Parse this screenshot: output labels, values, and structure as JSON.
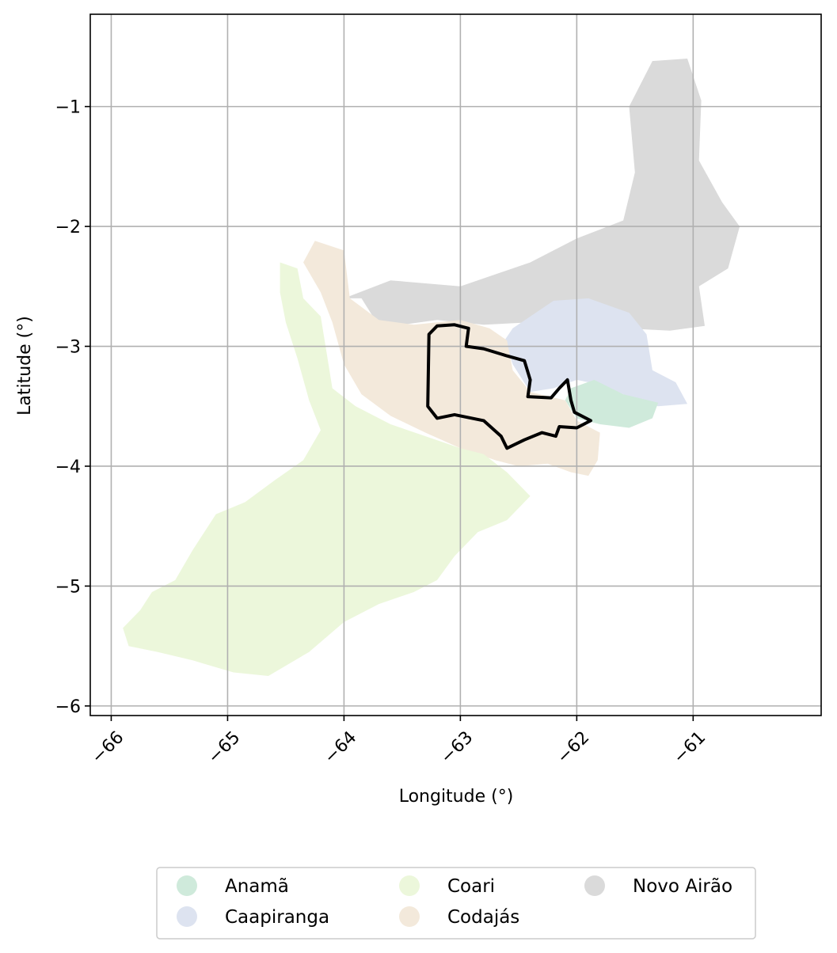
{
  "chart_data": {
    "type": "map",
    "xlabel": "Longitude (°)",
    "ylabel": "Latitude (°)",
    "xlim": [
      -66.18,
      -59.9
    ],
    "ylim": [
      -6.08,
      -0.23
    ],
    "grid": true,
    "xticks": [
      {
        "value": -66,
        "label": "−66"
      },
      {
        "value": -65,
        "label": "−65"
      },
      {
        "value": -64,
        "label": "−64"
      },
      {
        "value": -63,
        "label": "−63"
      },
      {
        "value": -62,
        "label": "−62"
      },
      {
        "value": -61,
        "label": "−61"
      }
    ],
    "yticks": [
      {
        "value": -1,
        "label": "−1"
      },
      {
        "value": -2,
        "label": "−2"
      },
      {
        "value": -3,
        "label": "−3"
      },
      {
        "value": -4,
        "label": "−4"
      },
      {
        "value": -5,
        "label": "−5"
      },
      {
        "value": -6,
        "label": "−6"
      }
    ],
    "legend_position": "bottom-center",
    "regions": [
      {
        "name": "Novo Airão",
        "color": "#dadada",
        "coords": [
          [
            -64.0,
            -2.6
          ],
          [
            -63.6,
            -2.45
          ],
          [
            -63.0,
            -2.5
          ],
          [
            -62.4,
            -2.3
          ],
          [
            -62.0,
            -2.1
          ],
          [
            -61.6,
            -1.95
          ],
          [
            -61.5,
            -1.55
          ],
          [
            -61.55,
            -1.0
          ],
          [
            -61.35,
            -0.62
          ],
          [
            -61.05,
            -0.6
          ],
          [
            -60.93,
            -0.95
          ],
          [
            -60.95,
            -1.45
          ],
          [
            -60.75,
            -1.8
          ],
          [
            -60.6,
            -2.0
          ],
          [
            -60.7,
            -2.35
          ],
          [
            -60.95,
            -2.5
          ],
          [
            -60.9,
            -2.83
          ],
          [
            -61.2,
            -2.87
          ],
          [
            -61.6,
            -2.85
          ],
          [
            -62.0,
            -2.63
          ],
          [
            -62.4,
            -2.8
          ],
          [
            -62.8,
            -2.82
          ],
          [
            -63.2,
            -2.78
          ],
          [
            -63.5,
            -2.82
          ],
          [
            -63.72,
            -2.8
          ],
          [
            -63.85,
            -2.6
          ]
        ]
      },
      {
        "name": "Caapiranga",
        "color": "#dde3f0",
        "coords": [
          [
            -62.55,
            -2.85
          ],
          [
            -62.2,
            -2.62
          ],
          [
            -61.9,
            -2.6
          ],
          [
            -61.55,
            -2.72
          ],
          [
            -61.4,
            -2.9
          ],
          [
            -61.35,
            -3.2
          ],
          [
            -61.15,
            -3.3
          ],
          [
            -61.05,
            -3.48
          ],
          [
            -61.3,
            -3.5
          ],
          [
            -61.55,
            -3.42
          ],
          [
            -61.8,
            -3.32
          ],
          [
            -62.0,
            -3.28
          ],
          [
            -62.2,
            -3.35
          ],
          [
            -62.4,
            -3.38
          ],
          [
            -62.55,
            -3.15
          ],
          [
            -62.62,
            -2.95
          ]
        ]
      },
      {
        "name": "Anamã",
        "color": "#cfeadb",
        "coords": [
          [
            -62.05,
            -3.35
          ],
          [
            -61.85,
            -3.28
          ],
          [
            -61.6,
            -3.4
          ],
          [
            -61.3,
            -3.47
          ],
          [
            -61.35,
            -3.6
          ],
          [
            -61.55,
            -3.68
          ],
          [
            -61.8,
            -3.65
          ],
          [
            -62.0,
            -3.6
          ],
          [
            -62.1,
            -3.45
          ]
        ]
      },
      {
        "name": "Codajás",
        "color": "#f3e9db",
        "coords": [
          [
            -64.35,
            -2.3
          ],
          [
            -64.25,
            -2.12
          ],
          [
            -64.0,
            -2.2
          ],
          [
            -63.95,
            -2.6
          ],
          [
            -63.7,
            -2.78
          ],
          [
            -63.4,
            -2.82
          ],
          [
            -63.0,
            -2.78
          ],
          [
            -62.75,
            -2.85
          ],
          [
            -62.6,
            -2.95
          ],
          [
            -62.55,
            -3.2
          ],
          [
            -62.4,
            -3.38
          ],
          [
            -62.1,
            -3.45
          ],
          [
            -62.0,
            -3.62
          ],
          [
            -61.8,
            -3.72
          ],
          [
            -61.82,
            -3.95
          ],
          [
            -61.9,
            -4.08
          ],
          [
            -62.05,
            -4.05
          ],
          [
            -62.25,
            -3.98
          ],
          [
            -62.5,
            -4.0
          ],
          [
            -62.7,
            -3.95
          ],
          [
            -63.0,
            -3.85
          ],
          [
            -63.3,
            -3.72
          ],
          [
            -63.6,
            -3.58
          ],
          [
            -63.85,
            -3.4
          ],
          [
            -64.0,
            -3.15
          ],
          [
            -64.1,
            -2.8
          ],
          [
            -64.2,
            -2.55
          ]
        ]
      },
      {
        "name": "Coari",
        "color": "#ecf7db",
        "coords": [
          [
            -64.55,
            -2.3
          ],
          [
            -64.4,
            -2.35
          ],
          [
            -64.35,
            -2.6
          ],
          [
            -64.2,
            -2.75
          ],
          [
            -64.15,
            -3.05
          ],
          [
            -64.1,
            -3.35
          ],
          [
            -63.9,
            -3.5
          ],
          [
            -63.6,
            -3.65
          ],
          [
            -63.3,
            -3.75
          ],
          [
            -63.0,
            -3.85
          ],
          [
            -62.8,
            -3.9
          ],
          [
            -62.6,
            -4.05
          ],
          [
            -62.4,
            -4.25
          ],
          [
            -62.6,
            -4.45
          ],
          [
            -62.85,
            -4.55
          ],
          [
            -63.05,
            -4.75
          ],
          [
            -63.2,
            -4.95
          ],
          [
            -63.4,
            -5.05
          ],
          [
            -63.7,
            -5.15
          ],
          [
            -64.0,
            -5.3
          ],
          [
            -64.3,
            -5.55
          ],
          [
            -64.65,
            -5.75
          ],
          [
            -64.95,
            -5.72
          ],
          [
            -65.3,
            -5.62
          ],
          [
            -65.6,
            -5.55
          ],
          [
            -65.85,
            -5.5
          ],
          [
            -65.9,
            -5.35
          ],
          [
            -65.75,
            -5.2
          ],
          [
            -65.65,
            -5.05
          ],
          [
            -65.45,
            -4.95
          ],
          [
            -65.3,
            -4.7
          ],
          [
            -65.1,
            -4.4
          ],
          [
            -64.85,
            -4.3
          ],
          [
            -64.6,
            -4.12
          ],
          [
            -64.35,
            -3.95
          ],
          [
            -64.2,
            -3.7
          ],
          [
            -64.3,
            -3.45
          ],
          [
            -64.4,
            -3.1
          ],
          [
            -64.5,
            -2.8
          ],
          [
            -64.55,
            -2.55
          ]
        ]
      }
    ],
    "outline": [
      [
        -63.27,
        -2.9
      ],
      [
        -63.2,
        -2.83
      ],
      [
        -63.05,
        -2.82
      ],
      [
        -62.93,
        -2.85
      ],
      [
        -62.95,
        -3.0
      ],
      [
        -62.8,
        -3.02
      ],
      [
        -62.6,
        -3.08
      ],
      [
        -62.45,
        -3.12
      ],
      [
        -62.4,
        -3.28
      ],
      [
        -62.42,
        -3.42
      ],
      [
        -62.22,
        -3.43
      ],
      [
        -62.15,
        -3.35
      ],
      [
        -62.08,
        -3.28
      ],
      [
        -62.05,
        -3.45
      ],
      [
        -62.02,
        -3.55
      ],
      [
        -61.88,
        -3.62
      ],
      [
        -62.0,
        -3.68
      ],
      [
        -62.15,
        -3.67
      ],
      [
        -62.18,
        -3.75
      ],
      [
        -62.3,
        -3.72
      ],
      [
        -62.45,
        -3.78
      ],
      [
        -62.6,
        -3.85
      ],
      [
        -62.65,
        -3.75
      ],
      [
        -62.8,
        -3.62
      ],
      [
        -63.05,
        -3.57
      ],
      [
        -63.2,
        -3.6
      ],
      [
        -63.28,
        -3.5
      ]
    ],
    "legend": [
      {
        "label": "Anamã",
        "color": "#cfeadb"
      },
      {
        "label": "Caapiranga",
        "color": "#dde3f0"
      },
      {
        "label": "Coari",
        "color": "#ecf7db"
      },
      {
        "label": "Codajás",
        "color": "#f3e9db"
      },
      {
        "label": "Novo Airão",
        "color": "#dadada"
      }
    ]
  }
}
